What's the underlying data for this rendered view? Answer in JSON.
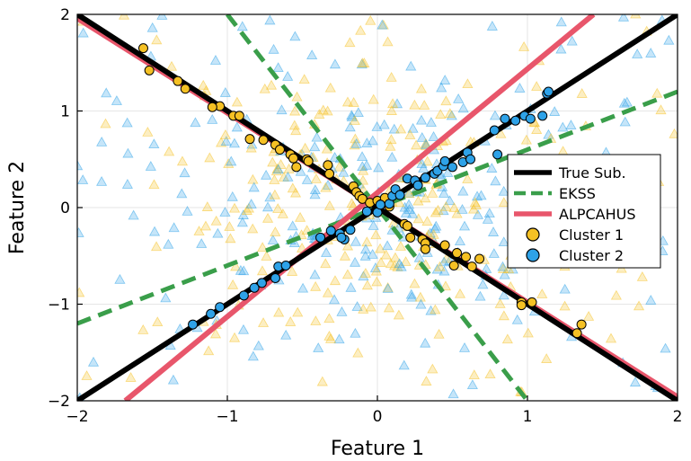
{
  "chart_data": {
    "type": "scatter",
    "title": "",
    "xlabel": "Feature 1",
    "ylabel": "Feature 2",
    "xlim": [
      -2,
      2
    ],
    "ylim": [
      -2,
      2
    ],
    "xticks": [
      -2,
      -1,
      0,
      1,
      2
    ],
    "yticks": [
      -2,
      -1,
      0,
      1,
      2
    ],
    "xtick_labels": [
      "−2",
      "−1",
      "0",
      "1",
      "2"
    ],
    "ytick_labels": [
      "−2",
      "−1",
      "0",
      "1",
      "2"
    ],
    "grid": true,
    "legend_position": "right",
    "lines": [
      {
        "name": "True Sub.",
        "style": "solid",
        "color": "#000000",
        "segments": [
          [
            [
              -2,
              -2
            ],
            [
              2,
              2
            ]
          ],
          [
            [
              -2,
              2
            ],
            [
              2,
              -2
            ]
          ]
        ]
      },
      {
        "name": "EKSS",
        "style": "dashed",
        "color": "#3a9e4a",
        "segments": [
          [
            [
              -2,
              -1.2
            ],
            [
              2,
              1.2
            ]
          ],
          [
            [
              -1.0,
              2.0
            ],
            [
              1.0,
              -2.0
            ]
          ]
        ]
      },
      {
        "name": "ALPCAHUS",
        "style": "solid",
        "color": "#e8566b",
        "segments": [
          [
            [
              -1.68,
              -2
            ],
            [
              1.44,
              2
            ]
          ],
          [
            [
              -2,
              1.96
            ],
            [
              2,
              -1.96
            ]
          ]
        ]
      }
    ],
    "series": [
      {
        "name": "Cluster 1",
        "marker": "circle",
        "color": "#f5c124",
        "points": [
          [
            -1.56,
            1.65
          ],
          [
            -1.52,
            1.42
          ],
          [
            -1.33,
            1.31
          ],
          [
            -1.28,
            1.23
          ],
          [
            -1.05,
            1.05
          ],
          [
            -1.1,
            1.04
          ],
          [
            -0.96,
            0.95
          ],
          [
            -0.92,
            0.95
          ],
          [
            -0.85,
            0.71
          ],
          [
            -0.76,
            0.7
          ],
          [
            -0.68,
            0.65
          ],
          [
            -0.65,
            0.6
          ],
          [
            -0.58,
            0.55
          ],
          [
            -0.56,
            0.51
          ],
          [
            -0.54,
            0.42
          ],
          [
            -0.47,
            0.5
          ],
          [
            -0.46,
            0.48
          ],
          [
            -0.33,
            0.44
          ],
          [
            -0.32,
            0.35
          ],
          [
            -0.16,
            0.22
          ],
          [
            -0.14,
            0.16
          ],
          [
            -0.12,
            0.12
          ],
          [
            -0.1,
            0.09
          ],
          [
            -0.05,
            0.05
          ],
          [
            0.0,
            0.07
          ],
          [
            0.03,
            0.04
          ],
          [
            0.05,
            0.1
          ],
          [
            0.08,
            0.01
          ],
          [
            0.18,
            -0.17
          ],
          [
            0.2,
            -0.19
          ],
          [
            0.22,
            -0.31
          ],
          [
            0.3,
            -0.33
          ],
          [
            0.32,
            -0.37
          ],
          [
            0.32,
            -0.43
          ],
          [
            0.45,
            -0.39
          ],
          [
            0.53,
            -0.47
          ],
          [
            0.51,
            -0.6
          ],
          [
            0.59,
            -0.51
          ],
          [
            0.63,
            -0.61
          ],
          [
            0.68,
            -0.53
          ],
          [
            0.96,
            -0.98
          ],
          [
            0.96,
            -1.01
          ],
          [
            1.03,
            -0.98
          ],
          [
            1.36,
            -1.21
          ],
          [
            1.33,
            -1.3
          ]
        ]
      },
      {
        "name": "Cluster 2",
        "marker": "circle",
        "color": "#2ea2e8",
        "points": [
          [
            -1.23,
            -1.21
          ],
          [
            -1.11,
            -1.1
          ],
          [
            -1.05,
            -1.03
          ],
          [
            -0.89,
            -0.91
          ],
          [
            -0.82,
            -0.83
          ],
          [
            -0.77,
            -0.78
          ],
          [
            -0.68,
            -0.73
          ],
          [
            -0.66,
            -0.61
          ],
          [
            -0.61,
            -0.6
          ],
          [
            -0.38,
            -0.31
          ],
          [
            -0.31,
            -0.24
          ],
          [
            -0.25,
            -0.27
          ],
          [
            -0.22,
            -0.33
          ],
          [
            -0.24,
            -0.31
          ],
          [
            -0.18,
            -0.23
          ],
          [
            -0.07,
            -0.04
          ],
          [
            0.0,
            -0.05
          ],
          [
            0.02,
            0.03
          ],
          [
            0.08,
            0.04
          ],
          [
            0.1,
            0.12
          ],
          [
            0.12,
            0.19
          ],
          [
            0.15,
            0.13
          ],
          [
            0.2,
            0.3
          ],
          [
            0.25,
            0.28
          ],
          [
            0.27,
            0.23
          ],
          [
            0.32,
            0.31
          ],
          [
            0.38,
            0.35
          ],
          [
            0.4,
            0.38
          ],
          [
            0.44,
            0.43
          ],
          [
            0.45,
            0.48
          ],
          [
            0.5,
            0.42
          ],
          [
            0.57,
            0.47
          ],
          [
            0.6,
            0.57
          ],
          [
            0.62,
            0.5
          ],
          [
            0.8,
            0.55
          ],
          [
            0.78,
            0.8
          ],
          [
            0.85,
            0.92
          ],
          [
            0.92,
            0.9
          ],
          [
            0.98,
            0.95
          ],
          [
            1.02,
            0.92
          ],
          [
            1.1,
            0.95
          ],
          [
            1.13,
            1.18
          ],
          [
            1.14,
            1.2
          ]
        ]
      }
    ],
    "background_points_note": "Semi-transparent triangles are unlabeled noise points in both cluster colors."
  }
}
